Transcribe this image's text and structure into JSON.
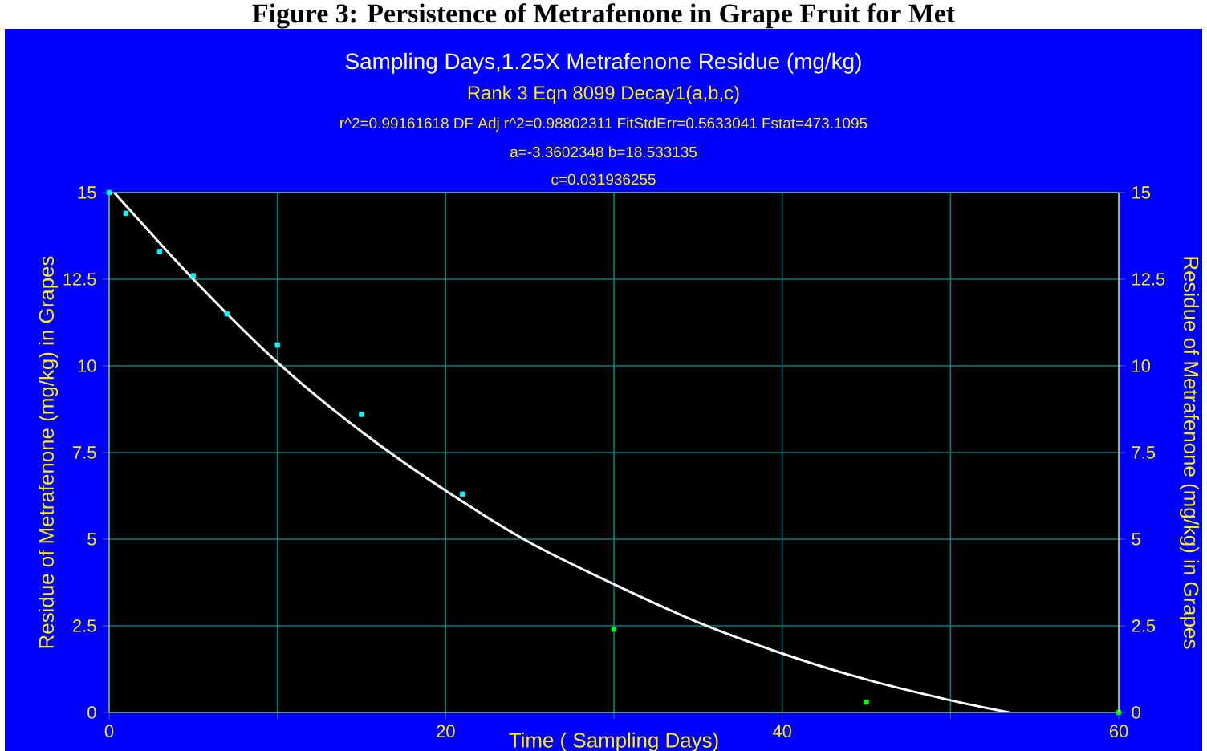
{
  "chart_data": {
    "type": "scatter",
    "title": "Sampling Days,1.25X Metrafenone Residue (mg/kg)",
    "subtitle": "Rank 3  Eqn 8099  Decay1(a,b,c)",
    "annotations": [
      "Figure 3: Persistence of Metrafenone in Grape Fruit for Met",
      "r^2=0.99161618  DF Adj r^2=0.98802311  FitStdErr=0.5633041  Fstat=473.1095",
      "a=-3.3602348 b=18.533135",
      "c=0.031936255"
    ],
    "xlabel": "Time ( Sampling Days)",
    "ylabel": "Residue of Metrafenone (mg/kg) in Grapes",
    "y2label": "Residue of Metrafenone (mg/kg) in Grapes",
    "xlim": [
      0,
      60
    ],
    "xticks": [
      0,
      {
        "value": 10,
        "label": null
      },
      20,
      {
        "value": 30,
        "label": null
      },
      40,
      {
        "value": 50,
        "label": null
      },
      60
    ],
    "ylim": [
      0,
      15
    ],
    "yticks": [
      0,
      2.5,
      5,
      7.5,
      10,
      12.5,
      15
    ],
    "y2lim": [
      0,
      15
    ],
    "y2ticks": [
      0,
      2.5,
      5,
      7.5,
      10,
      12.5,
      15
    ],
    "grid": true,
    "series": [
      {
        "type": "scatter",
        "marker": "square",
        "x": [
          0,
          1,
          3,
          5,
          7,
          10,
          15,
          21,
          30,
          45,
          60
        ],
        "values": [
          15,
          14.4,
          13.3,
          12.6,
          11.5,
          10.6,
          8.6,
          6.3,
          2.4,
          0.3,
          0
        ],
        "colors": [
          "#00ffff",
          "#00ffff",
          "#00ffff",
          "#00ffff",
          "#00ffff",
          "#00ffff",
          "#00ffff",
          "#00ffff",
          "#00ff00",
          "#00ff00",
          "#00ff00"
        ]
      },
      {
        "type": "line",
        "marker": "none",
        "color": "#ffffff",
        "x": [
          0.3,
          5,
          10,
          15,
          20,
          25,
          30,
          35,
          40,
          45,
          50,
          53.5
        ],
        "values": [
          15,
          12.5,
          10.1,
          8.1,
          6.4,
          4.9,
          3.7,
          2.6,
          1.7,
          0.95,
          0.35,
          0
        ]
      }
    ]
  }
}
